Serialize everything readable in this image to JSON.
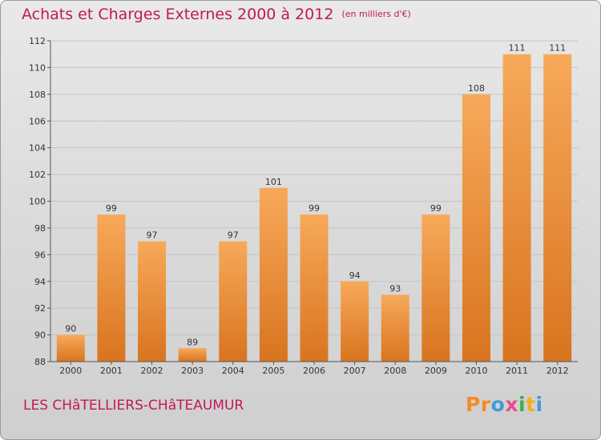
{
  "header": {
    "title": "Achats et Charges Externes 2000 à 2012",
    "unit": "(en milliers d'€)"
  },
  "footer": {
    "location": "LES CHâTELLIERS-CHâTEAUMUR",
    "logo_letters": [
      "P",
      "r",
      "o",
      "x",
      "i",
      "t",
      "i"
    ]
  },
  "colors": {
    "title": "#c2185b",
    "bar_light": "#f7a95a",
    "bar_dark": "#d9741f",
    "grid": "#c4c4c4",
    "logo": [
      "#f28c28",
      "#f28c28",
      "#3f9bd6",
      "#e94b8a",
      "#3fae49",
      "#f2b01e",
      "#3f9bd6"
    ]
  },
  "chart_data": {
    "type": "bar",
    "categories": [
      "2000",
      "2001",
      "2002",
      "2003",
      "2004",
      "2005",
      "2006",
      "2007",
      "2008",
      "2009",
      "2010",
      "2011",
      "2012"
    ],
    "values": [
      90,
      99,
      97,
      89,
      97,
      101,
      99,
      94,
      93,
      99,
      108,
      111,
      111
    ],
    "data_labels": [
      "90",
      "99",
      "97",
      "89",
      "97",
      "101",
      "99",
      "94",
      "93",
      "99",
      "108",
      "111",
      "111"
    ],
    "ylim": [
      88,
      112
    ],
    "yticks": [
      88,
      90,
      92,
      94,
      96,
      98,
      100,
      102,
      104,
      106,
      108,
      110,
      112
    ],
    "ytick_labels": [
      "88",
      "90",
      "92",
      "94",
      "96",
      "98",
      "100",
      "102",
      "104",
      "106",
      "108",
      "110",
      "112"
    ],
    "grid": true
  }
}
